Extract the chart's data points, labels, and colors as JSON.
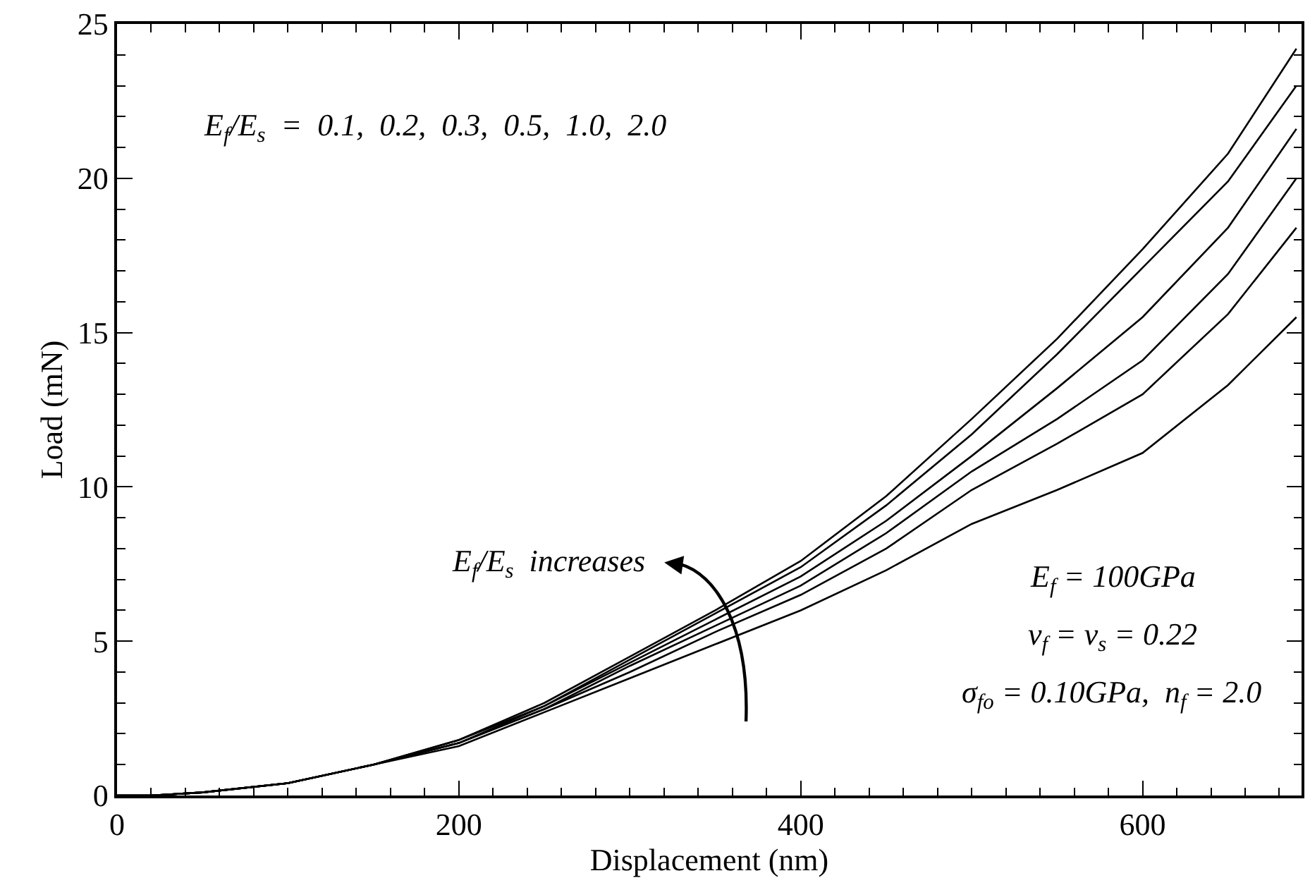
{
  "chart_data": {
    "type": "line",
    "xlabel": "Displacement (nm)",
    "ylabel": "Load (mN)",
    "x": [
      0,
      20,
      50,
      100,
      150,
      200,
      250,
      300,
      350,
      400,
      450,
      500,
      550,
      600,
      650,
      690
    ],
    "series": [
      {
        "color": "#000000",
        "values": [
          0,
          0,
          0.1,
          0.4,
          1.0,
          1.8,
          3.0,
          4.5,
          6.0,
          7.6,
          9.7,
          12.2,
          14.8,
          17.7,
          20.8,
          24.2
        ]
      },
      {
        "color": "#000000",
        "values": [
          0,
          0,
          0.1,
          0.4,
          1.0,
          1.8,
          2.9,
          4.4,
          5.9,
          7.4,
          9.4,
          11.7,
          14.3,
          17.1,
          19.9,
          23.0
        ]
      },
      {
        "color": "#000000",
        "values": [
          0,
          0,
          0.1,
          0.4,
          1.0,
          1.7,
          2.9,
          4.3,
          5.7,
          7.1,
          8.9,
          11.0,
          13.2,
          15.5,
          18.4,
          21.6
        ]
      },
      {
        "color": "#000000",
        "values": [
          0,
          0,
          0.1,
          0.4,
          1.0,
          1.7,
          2.8,
          4.2,
          5.5,
          6.8,
          8.5,
          10.5,
          12.2,
          14.1,
          16.9,
          20.0
        ]
      },
      {
        "color": "#000000",
        "values": [
          0,
          0,
          0.1,
          0.4,
          1.0,
          1.7,
          2.8,
          4.0,
          5.3,
          6.5,
          8.0,
          9.9,
          11.4,
          13.0,
          15.6,
          18.4
        ]
      },
      {
        "color": "#000000",
        "values": [
          0,
          0,
          0.1,
          0.4,
          1.0,
          1.6,
          2.7,
          3.8,
          4.9,
          6.0,
          7.3,
          8.8,
          9.9,
          11.1,
          13.3,
          15.5
        ]
      }
    ],
    "xlim": [
      0,
      693
    ],
    "ylim": [
      0,
      25
    ],
    "xticks": [
      0,
      200,
      400,
      600
    ],
    "yticks": [
      0,
      5,
      10,
      15,
      20,
      25
    ],
    "marker": "none",
    "line_style": "solid",
    "annotations": [
      "E$_{f}$/E$_{s}$  =  0.1,  0.2,  0.3,  0.5,  1.0,  2.0",
      "E$_{f}$/E$_{s}$  increases",
      "E$_{f}$ = 100GPa",
      "ν$_{f}$ = ν$_{s}$ = 0.22",
      "σ$_{fo}$ = 0.10GPa,  n$_{f}$ = 2.0"
    ]
  }
}
